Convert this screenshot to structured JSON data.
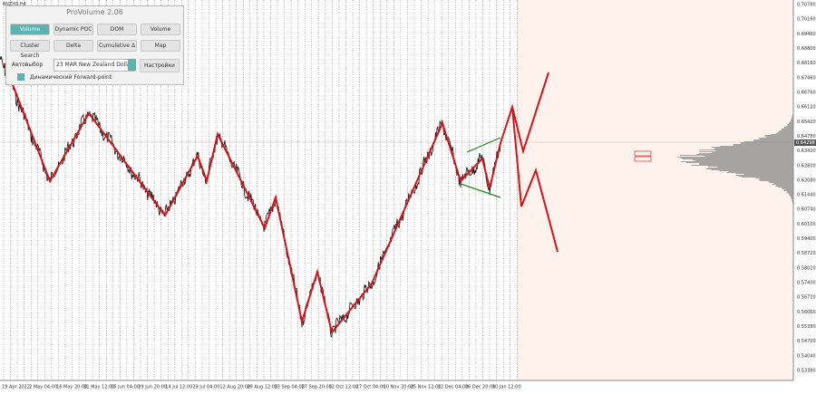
{
  "symbol": "6NZH3,H4",
  "panel": {
    "title": "ProVolume 2.06",
    "buttons": [
      "Volume Profile",
      "Dynamic POC",
      "DOM",
      "Volume",
      "Cluster Search",
      "Delta",
      "Cumulative Δ",
      "Map"
    ],
    "auto": "Автовыбор",
    "instrument": "23 MAR New Zealand Dollar",
    "settings": "Настройки",
    "forward": "Динамический Forward-point"
  },
  "price_axis": [
    "0.70780",
    "0.70160",
    "0.69460",
    "0.68800",
    "0.68160",
    "0.67460",
    "0.66760",
    "0.66120",
    "0.65420",
    "0.64780",
    "0.63420",
    "0.62800",
    "0.62080",
    "0.61440",
    "0.60740",
    "0.60100",
    "0.59400",
    "0.58720",
    "0.58020",
    "0.57400",
    "0.56720",
    "0.56060",
    "0.55380",
    "0.54700",
    "0.54040",
    "0.53380"
  ],
  "current_price": "0.64298",
  "time_axis": [
    "19 Apr 2022",
    "2 May 04:00",
    "16 May 20:00",
    "31 May 12:00",
    "15 Jun 04:00",
    "29 Jun 20:00",
    "14 Jul 12:00",
    "29 Jul 04:00",
    "12 Aug 20:00",
    "29 Aug 12:00",
    "13 Sep 04:00",
    "27 Sep 20:00",
    "12 Oct 12:00",
    "27 Oct 04:00",
    "10 Nov 20:00",
    "25 Nov 12:00",
    "12 Dec 04:00",
    "26 Dec 20:00",
    "10 Jan 12:00"
  ]
}
